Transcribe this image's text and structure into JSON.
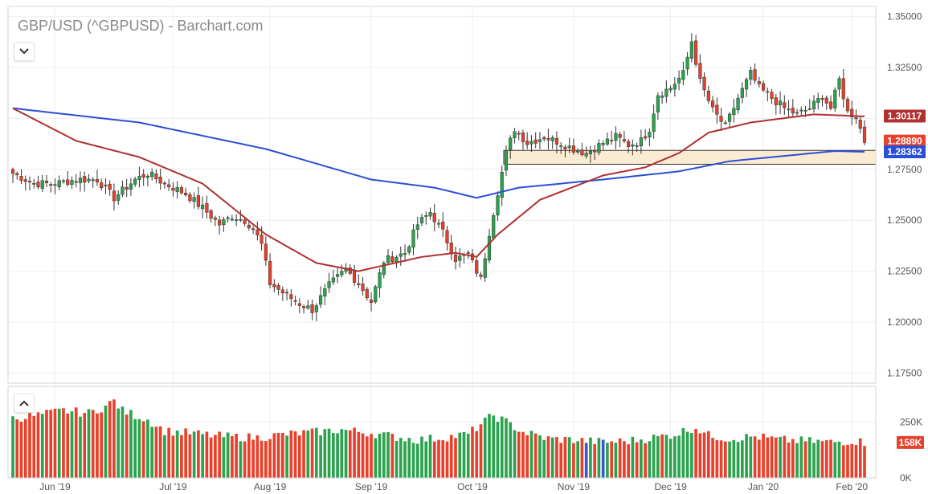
{
  "header": {
    "title": "GBP/USD (^GBPUSD) - Barchart.com"
  },
  "controls": {
    "collapse_price_icon": "chevron-down-icon",
    "collapse_volume_icon": "chevron-up-icon"
  },
  "colors": {
    "up": "#2ca24f",
    "down": "#e8402a",
    "ma_short": "#b03030",
    "ma_long": "#2a4fd6",
    "zone": "#fcebd3",
    "vol_highlight": "#3b54d6"
  },
  "chart_data": [
    {
      "type": "candlestick",
      "title": "GBP/USD (^GBPUSD) - Barchart.com",
      "ylim": [
        1.17,
        1.355
      ],
      "y_ticks": [
        "1.35000",
        "1.32500",
        "1.30000",
        "1.27500",
        "1.25000",
        "1.22500",
        "1.20000",
        "1.17500"
      ],
      "x_ticks": [
        "Jun '19",
        "Jul '19",
        "Aug '19",
        "Sep '19",
        "Oct '19",
        "Nov '19",
        "Dec '19",
        "Jan '20",
        "Feb '20"
      ],
      "x_tick_index": [
        10,
        38,
        61,
        85,
        109,
        133,
        156,
        178,
        199
      ],
      "grid": true,
      "price_tags": [
        {
          "label": "1.30117",
          "value": 1.30117,
          "color": "#b03030"
        },
        {
          "label": "1.28890",
          "value": 1.2889,
          "color": "#e8402a"
        },
        {
          "label": "1.28362",
          "value": 1.28362,
          "color": "#2a4fd6"
        }
      ],
      "support_zone": {
        "from": 1.2775,
        "to": 1.2843,
        "start_index": 117
      },
      "ma_short_anchors": [
        [
          0,
          1.305
        ],
        [
          15,
          1.289
        ],
        [
          30,
          1.281
        ],
        [
          45,
          1.268
        ],
        [
          60,
          1.243
        ],
        [
          72,
          1.229
        ],
        [
          82,
          1.225
        ],
        [
          97,
          1.232
        ],
        [
          105,
          1.234
        ],
        [
          110,
          1.232
        ],
        [
          115,
          1.243
        ],
        [
          125,
          1.26
        ],
        [
          140,
          1.272
        ],
        [
          150,
          1.276
        ],
        [
          158,
          1.283
        ],
        [
          165,
          1.293
        ],
        [
          175,
          1.298
        ],
        [
          190,
          1.302
        ],
        [
          202,
          1.301
        ]
      ],
      "ma_long_anchors": [
        [
          0,
          1.305
        ],
        [
          30,
          1.298
        ],
        [
          60,
          1.285
        ],
        [
          85,
          1.27
        ],
        [
          100,
          1.266
        ],
        [
          110,
          1.261
        ],
        [
          120,
          1.266
        ],
        [
          140,
          1.27
        ],
        [
          158,
          1.274
        ],
        [
          170,
          1.279
        ],
        [
          180,
          1.281
        ],
        [
          195,
          1.284
        ],
        [
          202,
          1.2836
        ]
      ],
      "price_path": [
        [
          0,
          1.273
        ],
        [
          5,
          1.268
        ],
        [
          10,
          1.268
        ],
        [
          15,
          1.27
        ],
        [
          20,
          1.27
        ],
        [
          24,
          1.261
        ],
        [
          29,
          1.27
        ],
        [
          32,
          1.273
        ],
        [
          36,
          1.268
        ],
        [
          41,
          1.263
        ],
        [
          45,
          1.256
        ],
        [
          49,
          1.248
        ],
        [
          52,
          1.252
        ],
        [
          55,
          1.25
        ],
        [
          57,
          1.246
        ],
        [
          59,
          1.238
        ],
        [
          61,
          1.219
        ],
        [
          65,
          1.213
        ],
        [
          68,
          1.209
        ],
        [
          71,
          1.206
        ],
        [
          75,
          1.218
        ],
        [
          79,
          1.226
        ],
        [
          82,
          1.219
        ],
        [
          85,
          1.21
        ],
        [
          88,
          1.23
        ],
        [
          93,
          1.234
        ],
        [
          96,
          1.248
        ],
        [
          99,
          1.254
        ],
        [
          102,
          1.244
        ],
        [
          105,
          1.231
        ],
        [
          108,
          1.233
        ],
        [
          111,
          1.221
        ],
        [
          113,
          1.244
        ],
        [
          115,
          1.264
        ],
        [
          117,
          1.283
        ],
        [
          119,
          1.295
        ],
        [
          122,
          1.288
        ],
        [
          126,
          1.291
        ],
        [
          130,
          1.288
        ],
        [
          133,
          1.285
        ],
        [
          136,
          1.283
        ],
        [
          140,
          1.288
        ],
        [
          143,
          1.291
        ],
        [
          146,
          1.287
        ],
        [
          149,
          1.289
        ],
        [
          151,
          1.295
        ],
        [
          153,
          1.312
        ],
        [
          156,
          1.315
        ],
        [
          159,
          1.322
        ],
        [
          161,
          1.338
        ],
        [
          163,
          1.318
        ],
        [
          166,
          1.304
        ],
        [
          169,
          1.296
        ],
        [
          172,
          1.31
        ],
        [
          175,
          1.322
        ],
        [
          177,
          1.315
        ],
        [
          180,
          1.31
        ],
        [
          183,
          1.305
        ],
        [
          186,
          1.302
        ],
        [
          189,
          1.305
        ],
        [
          192,
          1.311
        ],
        [
          194,
          1.305
        ],
        [
          196,
          1.319
        ],
        [
          198,
          1.303
        ],
        [
          200,
          1.301
        ],
        [
          202,
          1.2889
        ]
      ]
    },
    {
      "type": "bar",
      "title": "Volume",
      "ylim": [
        0,
        380000
      ],
      "y_ticks": [
        "250K",
        "0K"
      ],
      "last_tag": {
        "label": "158K",
        "value": 158000,
        "color": "#e8402a"
      },
      "volume_anchors": [
        [
          0,
          265
        ],
        [
          6,
          280
        ],
        [
          12,
          300
        ],
        [
          18,
          290
        ],
        [
          22,
          320
        ],
        [
          24,
          345
        ],
        [
          26,
          300
        ],
        [
          32,
          260
        ],
        [
          36,
          210
        ],
        [
          42,
          200
        ],
        [
          50,
          185
        ],
        [
          58,
          180
        ],
        [
          65,
          195
        ],
        [
          72,
          205
        ],
        [
          78,
          215
        ],
        [
          85,
          200
        ],
        [
          90,
          185
        ],
        [
          96,
          170
        ],
        [
          102,
          180
        ],
        [
          108,
          195
        ],
        [
          111,
          240
        ],
        [
          114,
          280
        ],
        [
          117,
          250
        ],
        [
          121,
          205
        ],
        [
          127,
          175
        ],
        [
          133,
          170
        ],
        [
          140,
          160
        ],
        [
          146,
          165
        ],
        [
          152,
          180
        ],
        [
          157,
          195
        ],
        [
          160,
          215
        ],
        [
          162,
          225
        ],
        [
          165,
          190
        ],
        [
          170,
          175
        ],
        [
          176,
          185
        ],
        [
          182,
          170
        ],
        [
          188,
          165
        ],
        [
          194,
          160
        ],
        [
          200,
          165
        ],
        [
          202,
          158
        ]
      ],
      "highlight_bars": [
        136,
        140
      ]
    }
  ]
}
